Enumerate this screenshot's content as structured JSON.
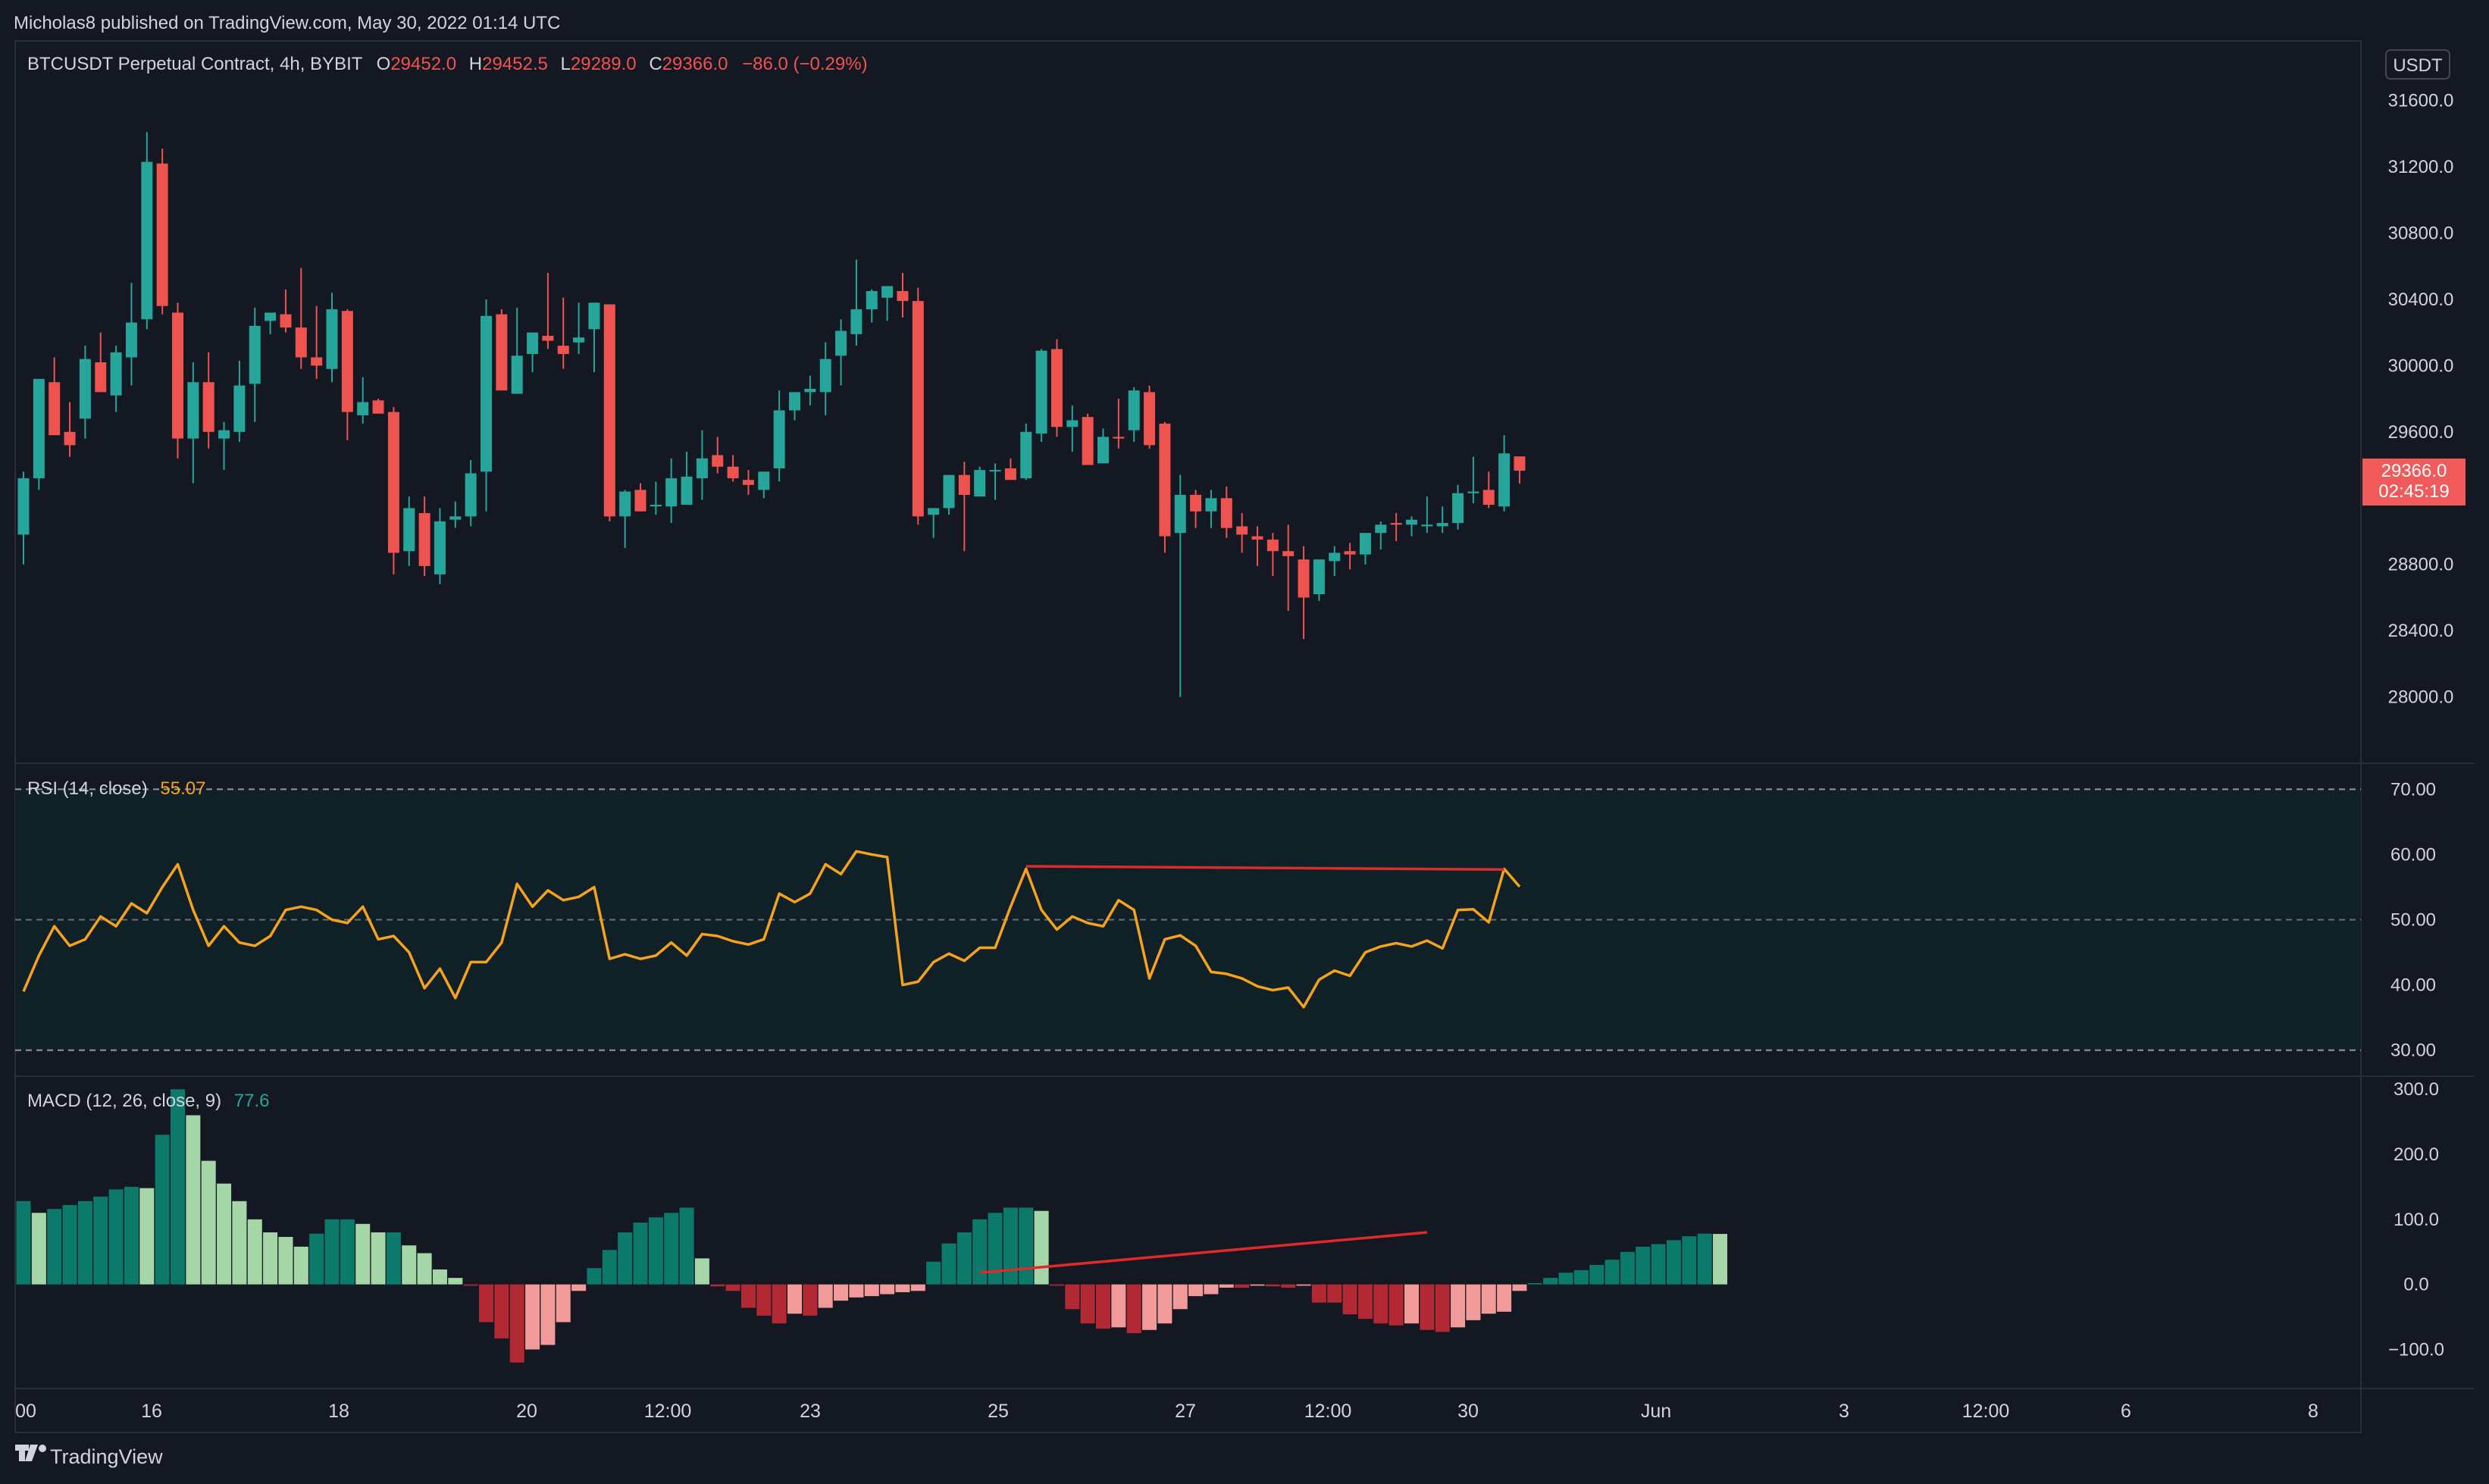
{
  "header": {
    "published_text": "Micholas8 published on TradingView.com, May 30, 2022 01:14 UTC"
  },
  "symbol": {
    "title": "BTCUSDT Perpetual Contract, 4h, BYBIT",
    "o_label": "O",
    "o_value": "29452.0",
    "h_label": "H",
    "h_value": "29452.5",
    "l_label": "L",
    "l_value": "29289.0",
    "c_label": "C",
    "c_value": "29366.0",
    "change": "−86.0 (−0.29%)",
    "currency": "USDT",
    "last_price_label": "29366.0",
    "countdown": "02:45:19"
  },
  "rsi": {
    "label": "RSI (14, close)",
    "value": "55.07"
  },
  "macd": {
    "label": "MACD (12, 26, close, 9)",
    "value": "77.6"
  },
  "colors": {
    "background": "#141822",
    "panel_border": "#2a2e39",
    "grid": "#1f2330",
    "up": "#26a69a",
    "up_dark": "#0c7a6b",
    "down": "#ef5350",
    "down_dark": "#b22833",
    "up_light": "#a5d6a7",
    "down_light": "#f19a9a",
    "rsi_line": "#f7a21b",
    "rsi_band": "#102027",
    "annotation": "#e02a2a",
    "axis_text": "#d1d4dc",
    "badge": "#f15a5a"
  },
  "footer": {
    "brand": "TradingView"
  },
  "chart_data": [
    {
      "type": "candlestick",
      "title": "BTCUSDT Perpetual Contract, 4h, BYBIT",
      "yaxis_ticks": [
        "31600.0",
        "31200.0",
        "30800.0",
        "30400.0",
        "30000.0",
        "29600.0",
        "28800.0",
        "28400.0",
        "28000.0"
      ],
      "ylim": [
        27600,
        31960
      ],
      "xaxis_ticks": [
        "00",
        "16",
        "18",
        "20",
        "12:00",
        "23",
        "25",
        "27",
        "12:00",
        "30",
        "Jun",
        "3",
        "12:00",
        "6",
        "8"
      ],
      "last_price": 29366.0,
      "candles_ohlc": [
        [
          28980,
          29360,
          28800,
          29320
        ],
        [
          29320,
          29860,
          29250,
          29920
        ],
        [
          29900,
          30050,
          29690,
          29580
        ],
        [
          29600,
          29780,
          29450,
          29520
        ],
        [
          29680,
          30120,
          29560,
          30040
        ],
        [
          30020,
          30200,
          29850,
          29840
        ],
        [
          29820,
          30120,
          29720,
          30080
        ],
        [
          30050,
          30500,
          29880,
          30260
        ],
        [
          30280,
          31410,
          30220,
          31230
        ],
        [
          31220,
          31310,
          30310,
          30360
        ],
        [
          30320,
          30380,
          29440,
          29560
        ],
        [
          29560,
          30020,
          29290,
          29900
        ],
        [
          29900,
          30080,
          29500,
          29600
        ],
        [
          29560,
          29660,
          29370,
          29610
        ],
        [
          29600,
          30030,
          29540,
          29880
        ],
        [
          29890,
          30350,
          29660,
          30240
        ],
        [
          30270,
          30310,
          30190,
          30320
        ],
        [
          30310,
          30460,
          30200,
          30230
        ],
        [
          30230,
          30590,
          29980,
          30050
        ],
        [
          30050,
          30360,
          29920,
          30000
        ],
        [
          29980,
          30440,
          29900,
          30340
        ],
        [
          30330,
          30340,
          29550,
          29720
        ],
        [
          29700,
          29930,
          29650,
          29780
        ],
        [
          29790,
          29800,
          29720,
          29710
        ],
        [
          29720,
          29750,
          28740,
          28870
        ],
        [
          28880,
          29210,
          28790,
          29140
        ],
        [
          29110,
          29210,
          28730,
          28790
        ],
        [
          28740,
          29140,
          28680,
          29060
        ],
        [
          29070,
          29180,
          29020,
          29090
        ],
        [
          29090,
          29430,
          29030,
          29350
        ],
        [
          29360,
          30400,
          29120,
          30300
        ],
        [
          30310,
          30340,
          29970,
          29850
        ],
        [
          29830,
          30350,
          29880,
          30060
        ],
        [
          30070,
          30200,
          29960,
          30200
        ],
        [
          30180,
          30560,
          30100,
          30150
        ],
        [
          30120,
          30410,
          29980,
          30070
        ],
        [
          30140,
          30380,
          30070,
          30170
        ],
        [
          30220,
          30360,
          29960,
          30380
        ],
        [
          30370,
          30370,
          29060,
          29090
        ],
        [
          29090,
          29250,
          28900,
          29240
        ],
        [
          29250,
          29290,
          29150,
          29120
        ],
        [
          29150,
          29300,
          29100,
          29160
        ],
        [
          29150,
          29440,
          29050,
          29320
        ],
        [
          29160,
          29480,
          29230,
          29330
        ],
        [
          29320,
          29610,
          29190,
          29440
        ],
        [
          29460,
          29570,
          29350,
          29390
        ],
        [
          29390,
          29460,
          29300,
          29320
        ],
        [
          29310,
          29370,
          29220,
          29280
        ],
        [
          29250,
          29330,
          29200,
          29360
        ],
        [
          29380,
          29850,
          29300,
          29730
        ],
        [
          29730,
          29780,
          29670,
          29840
        ],
        [
          29840,
          29940,
          29760,
          29860
        ],
        [
          29840,
          30140,
          29700,
          30040
        ],
        [
          30060,
          30280,
          29880,
          30210
        ],
        [
          30190,
          30640,
          30120,
          30340
        ],
        [
          30340,
          30460,
          30260,
          30450
        ],
        [
          30410,
          30460,
          30270,
          30480
        ],
        [
          30450,
          30560,
          30290,
          30390
        ],
        [
          30390,
          30470,
          29040,
          29090
        ],
        [
          29100,
          29130,
          28960,
          29140
        ],
        [
          29140,
          29330,
          29100,
          29340
        ],
        [
          29340,
          29420,
          28880,
          29220
        ],
        [
          29210,
          29390,
          29220,
          29370
        ],
        [
          29370,
          29410,
          29190,
          29370
        ],
        [
          29380,
          29440,
          29320,
          29310
        ],
        [
          29320,
          29650,
          29310,
          29600
        ],
        [
          29590,
          30100,
          29540,
          30090
        ],
        [
          30100,
          30160,
          29570,
          29630
        ],
        [
          29630,
          29760,
          29480,
          29670
        ],
        [
          29690,
          29710,
          29420,
          29400
        ],
        [
          29410,
          29620,
          29550,
          29570
        ],
        [
          29570,
          29800,
          29500,
          29560
        ],
        [
          29610,
          29870,
          29540,
          29850
        ],
        [
          29840,
          29880,
          29500,
          29520
        ],
        [
          29650,
          29660,
          28870,
          28970
        ],
        [
          28990,
          29340,
          28000,
          29220
        ],
        [
          29220,
          29250,
          29020,
          29120
        ],
        [
          29120,
          29250,
          29020,
          29200
        ],
        [
          29200,
          29270,
          28960,
          29020
        ],
        [
          29030,
          29110,
          28870,
          28980
        ],
        [
          28970,
          29030,
          28790,
          28950
        ],
        [
          28950,
          28990,
          28730,
          28880
        ],
        [
          28880,
          29040,
          28520,
          28850
        ],
        [
          28830,
          28910,
          28350,
          28600
        ],
        [
          28620,
          28830,
          28580,
          28830
        ],
        [
          28820,
          28910,
          28730,
          28870
        ],
        [
          28880,
          28930,
          28770,
          28860
        ],
        [
          28860,
          28980,
          28800,
          28990
        ],
        [
          28990,
          29060,
          28890,
          29040
        ],
        [
          29050,
          29110,
          28940,
          29040
        ],
        [
          29040,
          29090,
          28970,
          29070
        ],
        [
          29030,
          29210,
          28990,
          29040
        ],
        [
          29030,
          29150,
          28990,
          29050
        ],
        [
          29050,
          29280,
          29010,
          29230
        ],
        [
          29230,
          29450,
          29170,
          29240
        ],
        [
          29250,
          29360,
          29140,
          29160
        ],
        [
          29150,
          29580,
          29120,
          29470
        ],
        [
          29452,
          29452.5,
          29289,
          29366
        ]
      ]
    },
    {
      "type": "line",
      "title": "RSI (14, close)",
      "yaxis_ticks": [
        "70.00",
        "60.00",
        "50.00",
        "40.00",
        "30.00"
      ],
      "ylim": [
        26,
        74
      ],
      "bands": {
        "upper": 70,
        "middle": 50,
        "lower": 30
      },
      "last_value": 55.07,
      "values": [
        39,
        44.5,
        49,
        46,
        47,
        50.5,
        49,
        52.5,
        51,
        55,
        58.5,
        51.5,
        46,
        49,
        46.5,
        46,
        47.5,
        51.5,
        52,
        51.5,
        50,
        49.5,
        52,
        47,
        47.5,
        45,
        39.5,
        42.5,
        38,
        43.5,
        43.5,
        46.5,
        55.5,
        52,
        54.5,
        53,
        53.5,
        55,
        44,
        44.7,
        44,
        44.5,
        46.5,
        44.5,
        47.8,
        47.5,
        46.7,
        46.2,
        47,
        54,
        52.7,
        54,
        58.5,
        57,
        60.5,
        60,
        59.6,
        40,
        40.5,
        43.5,
        44.8,
        43.7,
        45.7,
        45.7,
        52,
        57.8,
        51.5,
        48.5,
        50.5,
        49.5,
        49,
        53,
        51.5,
        41,
        47,
        47.6,
        46,
        42,
        41.7,
        41,
        39.8,
        39.2,
        39.6,
        36.6,
        40.8,
        42.2,
        41.4,
        45,
        45.9,
        46.4,
        45.9,
        46.8,
        45.6,
        51.5,
        51.6,
        49.6,
        57.8,
        55.07
      ],
      "trendline": {
        "from_index": 65,
        "to_index": 96,
        "from_value": 58.2,
        "to_value": 57.7
      }
    },
    {
      "type": "bar",
      "title": "MACD (12, 26, close, 9)",
      "yaxis_ticks": [
        "300.0",
        "200.0",
        "100.0",
        "0.0",
        "−100.0"
      ],
      "ylim": [
        -160,
        320
      ],
      "last_value": 77.6,
      "histogram": [
        128,
        110,
        116,
        122,
        128,
        135,
        146,
        150,
        148,
        230,
        300,
        260,
        190,
        155,
        128,
        100,
        80,
        73,
        58,
        78,
        100,
        100,
        93,
        80,
        80,
        60,
        48,
        23,
        10,
        -2,
        -58,
        -83,
        -120,
        -100,
        -93,
        -58,
        -10,
        25,
        53,
        80,
        95,
        103,
        110,
        118,
        40,
        -3,
        -10,
        -36,
        -48,
        -60,
        -45,
        -48,
        -36,
        -25,
        -20,
        -18,
        -15,
        -12,
        -10,
        35,
        63,
        80,
        100,
        110,
        118,
        118,
        113,
        -2,
        -38,
        -60,
        -68,
        -66,
        -75,
        -70,
        -60,
        -38,
        -18,
        -15,
        -5,
        -5,
        -2,
        -3,
        -5,
        -2,
        -28,
        -28,
        -46,
        -53,
        -60,
        -63,
        -60,
        -70,
        -73,
        -66,
        -55,
        -45,
        -42,
        -10,
        2,
        10,
        18,
        22,
        30,
        38,
        50,
        58,
        62,
        68,
        74,
        78,
        77.6
      ],
      "trendline": {
        "from_index": 62,
        "to_index": 91,
        "from_value": 18,
        "to_value": 80
      }
    }
  ]
}
